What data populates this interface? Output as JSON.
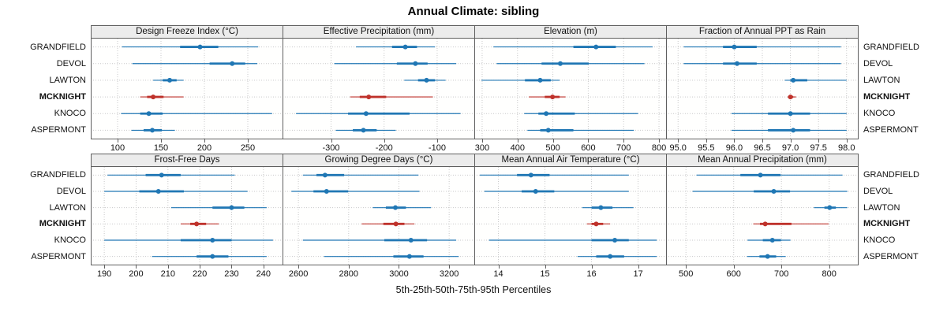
{
  "title": "Annual Climate: sibling",
  "caption": "5th-25th-50th-75th-95th Percentiles",
  "stations": [
    "GRANDFIELD",
    "DEVOL",
    "LAWTON",
    "MCKNIGHT",
    "KNOCO",
    "ASPERMONT"
  ],
  "highlight_station": "MCKNIGHT",
  "colors": {
    "series": "#2077b4",
    "highlight": "#bf322b",
    "grid": "#c9c9c9",
    "border": "#5f5f5f",
    "strip_bg": "#ececec"
  },
  "chart_data": {
    "type": "dotplot-percentiles",
    "percentile_levels": [
      5,
      25,
      50,
      75,
      95
    ],
    "layout": {
      "rows": 2,
      "cols": 4,
      "grid": "dotted",
      "y_labels": "both-sides"
    },
    "panels": [
      {
        "title": "Design Freeze Index (°C)",
        "xlim": [
          70,
          290
        ],
        "ticks": [
          100,
          150,
          200,
          250
        ],
        "tick_labels": [
          "100",
          "150",
          "200",
          "250"
        ],
        "values": {
          "GRANDFIELD": [
            105,
            172,
            195,
            216,
            262
          ],
          "DEVOL": [
            117,
            206,
            232,
            247,
            261
          ],
          "LAWTON": [
            141,
            152,
            160,
            168,
            176
          ],
          "MCKNIGHT": [
            126,
            134,
            141,
            153,
            176
          ],
          "KNOCO": [
            104,
            126,
            136,
            152,
            278
          ],
          "ASPERMONT": [
            116,
            130,
            140,
            151,
            166
          ]
        }
      },
      {
        "title": "Effective Precipitation (mm)",
        "xlim": [
          -390,
          -30
        ],
        "ticks": [
          -300,
          -200,
          -100
        ],
        "tick_labels": [
          "-300",
          "-200",
          "-100"
        ],
        "values": {
          "GRANDFIELD": [
            -253,
            -185,
            -160,
            -138,
            -104
          ],
          "DEVOL": [
            -294,
            -176,
            -141,
            -118,
            -64
          ],
          "LAWTON": [
            -162,
            -136,
            -120,
            -104,
            -84
          ],
          "MCKNIGHT": [
            -264,
            -246,
            -229,
            -196,
            -108
          ],
          "KNOCO": [
            -366,
            -268,
            -234,
            -152,
            -56
          ],
          "ASPERMONT": [
            -291,
            -259,
            -239,
            -214,
            -178
          ]
        }
      },
      {
        "title": "Elevation (m)",
        "xlim": [
          280,
          820
        ],
        "ticks": [
          300,
          400,
          500,
          600,
          700,
          800
        ],
        "tick_labels": [
          "300",
          "400",
          "500",
          "600",
          "700",
          "800"
        ],
        "values": {
          "GRANDFIELD": [
            332,
            558,
            622,
            678,
            782
          ],
          "DEVOL": [
            341,
            468,
            521,
            601,
            759
          ],
          "LAWTON": [
            298,
            421,
            464,
            494,
            519
          ],
          "MCKNIGHT": [
            432,
            477,
            499,
            519,
            536
          ],
          "KNOCO": [
            419,
            459,
            481,
            562,
            741
          ],
          "ASPERMONT": [
            428,
            464,
            487,
            558,
            729
          ]
        }
      },
      {
        "title": "Fraction of Annual PPT as Rain",
        "xlim": [
          94.8,
          98.2
        ],
        "ticks": [
          95.0,
          95.5,
          96.0,
          96.5,
          97.0,
          97.5,
          98.0
        ],
        "tick_labels": [
          "95.0",
          "95.5",
          "96.0",
          "96.5",
          "97.0",
          "97.5",
          "98.0"
        ],
        "values": {
          "GRANDFIELD": [
            95.1,
            95.8,
            96.0,
            96.4,
            97.9
          ],
          "DEVOL": [
            95.1,
            95.8,
            96.05,
            96.4,
            97.9
          ],
          "LAWTON": [
            96.9,
            97.0,
            97.05,
            97.3,
            98.0
          ],
          "MCKNIGHT": [
            96.95,
            97.0,
            97.0,
            97.05,
            97.1
          ],
          "KNOCO": [
            95.95,
            96.6,
            97.0,
            97.35,
            98.0
          ],
          "ASPERMONT": [
            95.95,
            96.6,
            97.05,
            97.35,
            98.0
          ]
        }
      },
      {
        "title": "Frost-Free Days",
        "xlim": [
          186,
          246
        ],
        "ticks": [
          190,
          200,
          210,
          220,
          230,
          240
        ],
        "tick_labels": [
          "190",
          "200",
          "210",
          "220",
          "230",
          "240"
        ],
        "values": {
          "GRANDFIELD": [
            191,
            203,
            208,
            214,
            231
          ],
          "DEVOL": [
            190,
            201,
            207,
            215,
            235
          ],
          "LAWTON": [
            211,
            224,
            230,
            234,
            241
          ],
          "MCKNIGHT": [
            214,
            217,
            219,
            222,
            226
          ],
          "KNOCO": [
            190,
            214,
            224,
            230,
            243
          ],
          "ASPERMONT": [
            205,
            219,
            224,
            229,
            241
          ]
        }
      },
      {
        "title": "Growing Degree Days (°C)",
        "xlim": [
          2540,
          3300
        ],
        "ticks": [
          2600,
          2800,
          3000,
          3200
        ],
        "tick_labels": [
          "2600",
          "2800",
          "3000",
          "3200"
        ],
        "values": {
          "GRANDFIELD": [
            2618,
            2672,
            2706,
            2782,
            3078
          ],
          "DEVOL": [
            2572,
            2660,
            2712,
            2798,
            3082
          ],
          "LAWTON": [
            2896,
            2948,
            2986,
            3028,
            3128
          ],
          "MCKNIGHT": [
            2852,
            2938,
            2988,
            3022,
            3062
          ],
          "KNOCO": [
            2618,
            2942,
            3048,
            3112,
            3228
          ],
          "ASPERMONT": [
            2702,
            2978,
            3042,
            3098,
            3238
          ]
        }
      },
      {
        "title": "Mean Annual Air Temperature (°C)",
        "xlim": [
          13.5,
          17.6
        ],
        "ticks": [
          14,
          15,
          16,
          17
        ],
        "tick_labels": [
          "14",
          "15",
          "16",
          "17"
        ],
        "values": {
          "GRANDFIELD": [
            13.6,
            14.4,
            14.7,
            15.1,
            16.8
          ],
          "DEVOL": [
            13.7,
            14.5,
            14.8,
            15.2,
            16.8
          ],
          "LAWTON": [
            15.8,
            16.0,
            16.2,
            16.45,
            16.9
          ],
          "MCKNIGHT": [
            15.9,
            16.0,
            16.1,
            16.25,
            16.4
          ],
          "KNOCO": [
            13.8,
            16.0,
            16.5,
            16.8,
            17.4
          ],
          "ASPERMONT": [
            15.7,
            16.1,
            16.4,
            16.7,
            17.4
          ]
        }
      },
      {
        "title": "Mean Annual Precipitation (mm)",
        "xlim": [
          460,
          860
        ],
        "ticks": [
          500,
          600,
          700,
          800
        ],
        "tick_labels": [
          "500",
          "600",
          "700",
          "800"
        ],
        "values": {
          "GRANDFIELD": [
            522,
            614,
            656,
            698,
            828
          ],
          "DEVOL": [
            514,
            642,
            684,
            718,
            838
          ],
          "LAWTON": [
            768,
            790,
            801,
            814,
            838
          ],
          "MCKNIGHT": [
            641,
            655,
            666,
            721,
            799
          ],
          "KNOCO": [
            629,
            661,
            681,
            699,
            719
          ],
          "ASPERMONT": [
            628,
            654,
            671,
            689,
            709
          ]
        }
      }
    ]
  }
}
